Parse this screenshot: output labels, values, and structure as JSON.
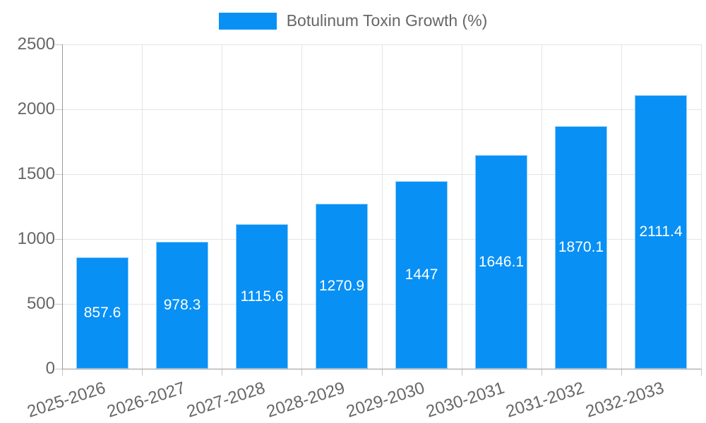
{
  "legend": {
    "label": "Botulinum Toxin Growth (%)"
  },
  "colors": {
    "bar_fill": "#0890f5",
    "bar_border": "#8ecdfa",
    "grid": "#e4e4e4",
    "axis": "#999999",
    "tick": "#c6c6c6",
    "axis_text": "#666666",
    "value_text": "#ffffff",
    "legend_text": "#666666"
  },
  "chart_data": {
    "type": "bar",
    "title": "",
    "xlabel": "",
    "ylabel": "",
    "series_name": "Botulinum Toxin Growth (%)",
    "categories": [
      "2025-2026",
      "2026-2027",
      "2027-2028",
      "2028-2029",
      "2029-2030",
      "2030-2031",
      "2031-2032",
      "2032-2033"
    ],
    "values": [
      857.6,
      978.3,
      1115.6,
      1270.9,
      1447,
      1646.1,
      1870.1,
      2111.4
    ],
    "value_labels": [
      "857.6",
      "978.3",
      "1115.6",
      "1270.9",
      "1447",
      "1646.1",
      "1870.1",
      "2111.4"
    ],
    "value_label_position": "inside-center",
    "yticks": [
      0,
      500,
      1000,
      1500,
      2000,
      2500
    ],
    "ytick_labels": [
      "0",
      "500",
      "1000",
      "1500",
      "2000",
      "2500"
    ],
    "ylim": [
      0,
      2500
    ],
    "grid": true,
    "legend_position": "top-center",
    "x_label_rotation_deg": -18
  }
}
